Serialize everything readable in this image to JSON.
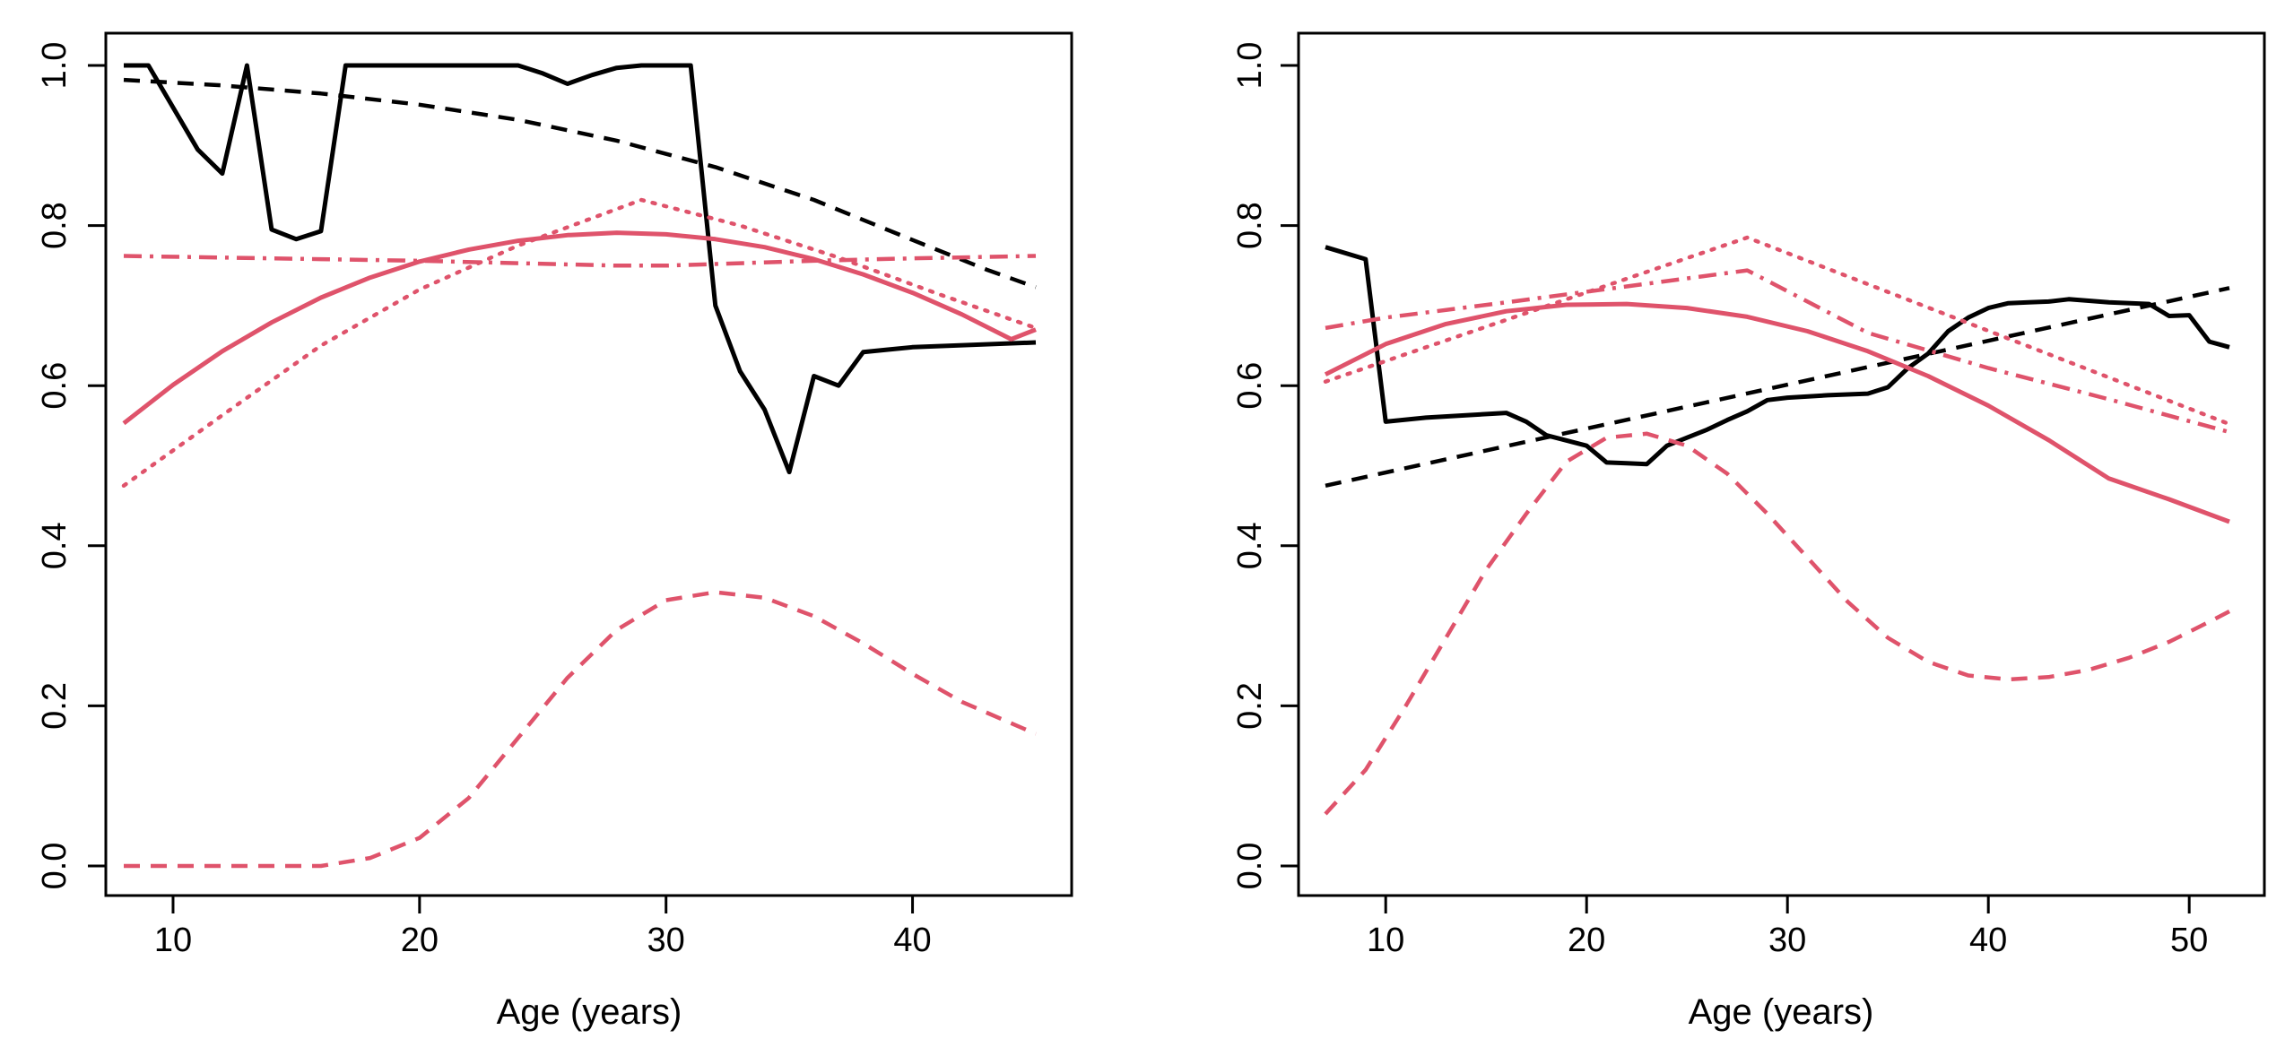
{
  "colors": {
    "black": "#000000",
    "red": "#DF536B"
  },
  "chart_data": [
    {
      "type": "line",
      "xlabel": "Age (years)",
      "ylabel": "",
      "xlim": [
        8,
        45
      ],
      "ylim": [
        0,
        1
      ],
      "xticks": [
        10,
        20,
        30,
        40
      ],
      "yticks": [
        0.0,
        0.2,
        0.4,
        0.6,
        0.8,
        1.0
      ],
      "ytick_labels": [
        "0.0",
        "0.2",
        "0.4",
        "0.6",
        "0.8",
        "1.0"
      ],
      "legend": "none",
      "grid": false,
      "series": [
        {
          "color": "#000000",
          "style": "solid",
          "x": [
            8,
            9,
            11,
            12,
            13,
            14,
            15,
            16,
            17,
            18,
            20,
            22,
            24,
            25,
            26,
            27,
            28,
            29,
            30,
            31,
            32,
            33,
            34,
            35,
            36,
            37,
            38,
            39,
            40,
            45
          ],
          "y": [
            1.0,
            1.0,
            0.895,
            0.865,
            1.0,
            0.795,
            0.783,
            0.793,
            1.0,
            1.0,
            1.0,
            1.0,
            1.0,
            0.99,
            0.977,
            0.988,
            0.997,
            1.0,
            1.0,
            1.0,
            0.7,
            0.618,
            0.57,
            0.492,
            0.612,
            0.6,
            0.642,
            0.645,
            0.648,
            0.654
          ]
        },
        {
          "color": "#000000",
          "style": "dashed",
          "x": [
            8,
            12,
            16,
            20,
            24,
            28,
            32,
            36,
            40,
            43,
            45
          ],
          "y": [
            0.982,
            0.975,
            0.965,
            0.951,
            0.932,
            0.906,
            0.873,
            0.832,
            0.782,
            0.745,
            0.723
          ]
        },
        {
          "color": "#DF536B",
          "style": "solid",
          "x": [
            8,
            10,
            12,
            14,
            16,
            18,
            20,
            22,
            24,
            26,
            28,
            30,
            32,
            34,
            36,
            38,
            40,
            42,
            44,
            45
          ],
          "y": [
            0.553,
            0.601,
            0.643,
            0.679,
            0.71,
            0.735,
            0.755,
            0.77,
            0.781,
            0.788,
            0.791,
            0.789,
            0.783,
            0.773,
            0.758,
            0.739,
            0.716,
            0.689,
            0.658,
            0.67
          ]
        },
        {
          "color": "#DF536B",
          "style": "dotted",
          "x": [
            8,
            12,
            16,
            20,
            24,
            29,
            33,
            37,
            41,
            45
          ],
          "y": [
            0.475,
            0.563,
            0.65,
            0.72,
            0.775,
            0.832,
            0.8,
            0.76,
            0.715,
            0.672
          ]
        },
        {
          "color": "#DF536B",
          "style": "dashdot",
          "x": [
            8,
            12,
            16,
            20,
            24,
            28,
            30,
            32,
            36,
            40,
            45
          ],
          "y": [
            0.762,
            0.76,
            0.758,
            0.756,
            0.753,
            0.75,
            0.75,
            0.752,
            0.756,
            0.759,
            0.762
          ]
        },
        {
          "color": "#DF536B",
          "style": "dashed",
          "x": [
            8,
            12,
            16,
            18,
            20,
            22,
            24,
            26,
            28,
            30,
            32,
            34,
            36,
            38,
            40,
            42,
            45
          ],
          "y": [
            0.0,
            0.0,
            0.0,
            0.01,
            0.035,
            0.085,
            0.16,
            0.235,
            0.295,
            0.332,
            0.342,
            0.335,
            0.312,
            0.278,
            0.24,
            0.205,
            0.165
          ]
        }
      ]
    },
    {
      "type": "line",
      "xlabel": "Age (years)",
      "ylabel": "",
      "xlim": [
        7,
        52
      ],
      "ylim": [
        0,
        1
      ],
      "xticks": [
        10,
        20,
        30,
        40,
        50
      ],
      "yticks": [
        0.0,
        0.2,
        0.4,
        0.6,
        0.8,
        1.0
      ],
      "ytick_labels": [
        "0.0",
        "0.2",
        "0.4",
        "0.6",
        "0.8",
        "1.0"
      ],
      "legend": "none",
      "grid": false,
      "series": [
        {
          "color": "#000000",
          "style": "solid",
          "x": [
            7,
            9,
            10,
            12,
            14,
            16,
            17,
            18,
            20,
            21,
            22,
            23,
            24,
            25,
            26,
            27,
            28,
            29,
            30,
            32,
            34,
            35,
            36,
            37,
            38,
            39,
            40,
            41,
            42,
            43,
            44,
            46,
            48,
            49,
            50,
            51,
            52
          ],
          "y": [
            0.773,
            0.758,
            0.555,
            0.56,
            0.563,
            0.566,
            0.555,
            0.538,
            0.525,
            0.504,
            0.503,
            0.502,
            0.525,
            0.535,
            0.545,
            0.557,
            0.568,
            0.582,
            0.585,
            0.588,
            0.59,
            0.598,
            0.622,
            0.64,
            0.668,
            0.685,
            0.697,
            0.703,
            0.704,
            0.705,
            0.708,
            0.704,
            0.702,
            0.687,
            0.688,
            0.655,
            0.648
          ]
        },
        {
          "color": "#000000",
          "style": "dashed",
          "x": [
            7,
            52
          ],
          "y": [
            0.475,
            0.722
          ]
        },
        {
          "color": "#DF536B",
          "style": "solid",
          "x": [
            7,
            10,
            13,
            16,
            19,
            22,
            25,
            28,
            31,
            34,
            37,
            40,
            43,
            46,
            49,
            52
          ],
          "y": [
            0.614,
            0.652,
            0.677,
            0.693,
            0.701,
            0.702,
            0.697,
            0.686,
            0.668,
            0.643,
            0.612,
            0.575,
            0.532,
            0.484,
            0.458,
            0.43
          ]
        },
        {
          "color": "#DF536B",
          "style": "dotted",
          "x": [
            7,
            28,
            52
          ],
          "y": [
            0.605,
            0.785,
            0.552
          ]
        },
        {
          "color": "#DF536B",
          "style": "dashdot",
          "x": [
            7,
            10,
            16,
            22,
            28,
            34,
            40,
            46,
            52
          ],
          "y": [
            0.672,
            0.685,
            0.704,
            0.724,
            0.744,
            0.666,
            0.622,
            0.583,
            0.542
          ]
        },
        {
          "color": "#DF536B",
          "style": "dashed",
          "x": [
            7,
            9,
            11,
            13,
            15,
            17,
            19,
            21,
            23,
            25,
            27,
            29,
            31,
            33,
            35,
            37,
            39,
            41,
            43,
            45,
            47,
            49,
            51,
            52
          ],
          "y": [
            0.065,
            0.12,
            0.2,
            0.285,
            0.37,
            0.44,
            0.505,
            0.535,
            0.54,
            0.525,
            0.49,
            0.44,
            0.385,
            0.33,
            0.285,
            0.255,
            0.238,
            0.233,
            0.236,
            0.245,
            0.26,
            0.28,
            0.305,
            0.318
          ]
        }
      ]
    }
  ]
}
